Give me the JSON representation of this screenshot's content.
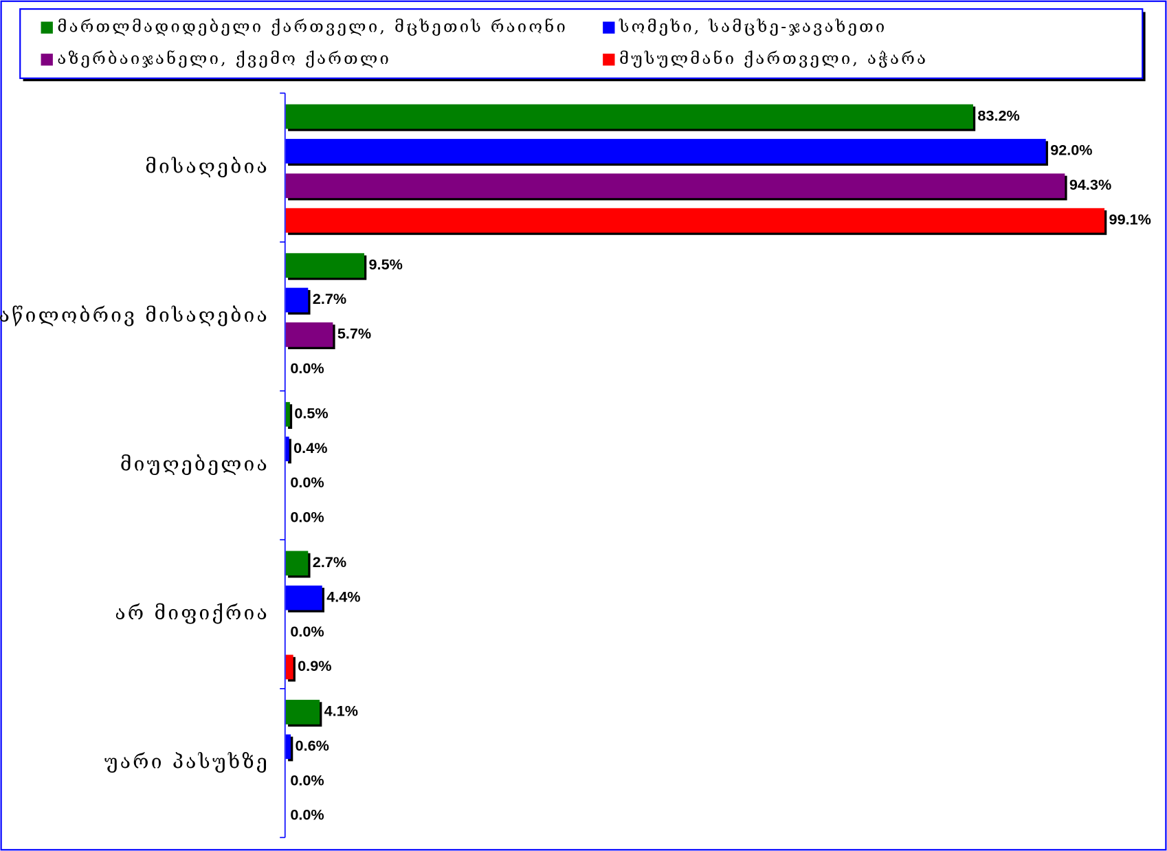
{
  "chart_data": {
    "type": "bar",
    "orientation": "horizontal",
    "categories": [
      "მისაღებია",
      "ნაწილობრივ მისაღებია",
      "მიუღებელია",
      "არ მიფიქრია",
      "უარი პასუხზე"
    ],
    "xlim": [
      0,
      100
    ],
    "series": [
      {
        "name": "მართლმადიდებელი ქართველი, მცხეთის რაიონი",
        "color": "#008000",
        "values": [
          83.2,
          9.5,
          0.5,
          2.7,
          4.1
        ],
        "value_labels": [
          "83.2%",
          "9.5%",
          "0.5%",
          "2.7%",
          "4.1%"
        ]
      },
      {
        "name": "სომეხი, სამცხე-ჯავახეთი",
        "color": "#0000ff",
        "values": [
          92,
          2.7,
          0.4,
          4.4,
          0.6
        ],
        "value_labels": [
          "92.0%",
          "2.7%",
          "0.4%",
          "4.4%",
          "0.6%"
        ]
      },
      {
        "name": "აზერბაიჯანელი, ქვემო ქართლი",
        "color": "#800080",
        "values": [
          94.3,
          5.7,
          0,
          0,
          0
        ],
        "value_labels": [
          "94.3%",
          "5.7%",
          "0.0%",
          "0.0%",
          "0.0%"
        ]
      },
      {
        "name": "მუსულმანი ქართველი, აჭარა",
        "color": "#ff0000",
        "values": [
          99.1,
          0,
          0,
          0.9,
          0
        ],
        "value_labels": [
          "99.1%",
          "0.0%",
          "0.0%",
          "0.9%",
          "0.0%"
        ]
      }
    ]
  }
}
